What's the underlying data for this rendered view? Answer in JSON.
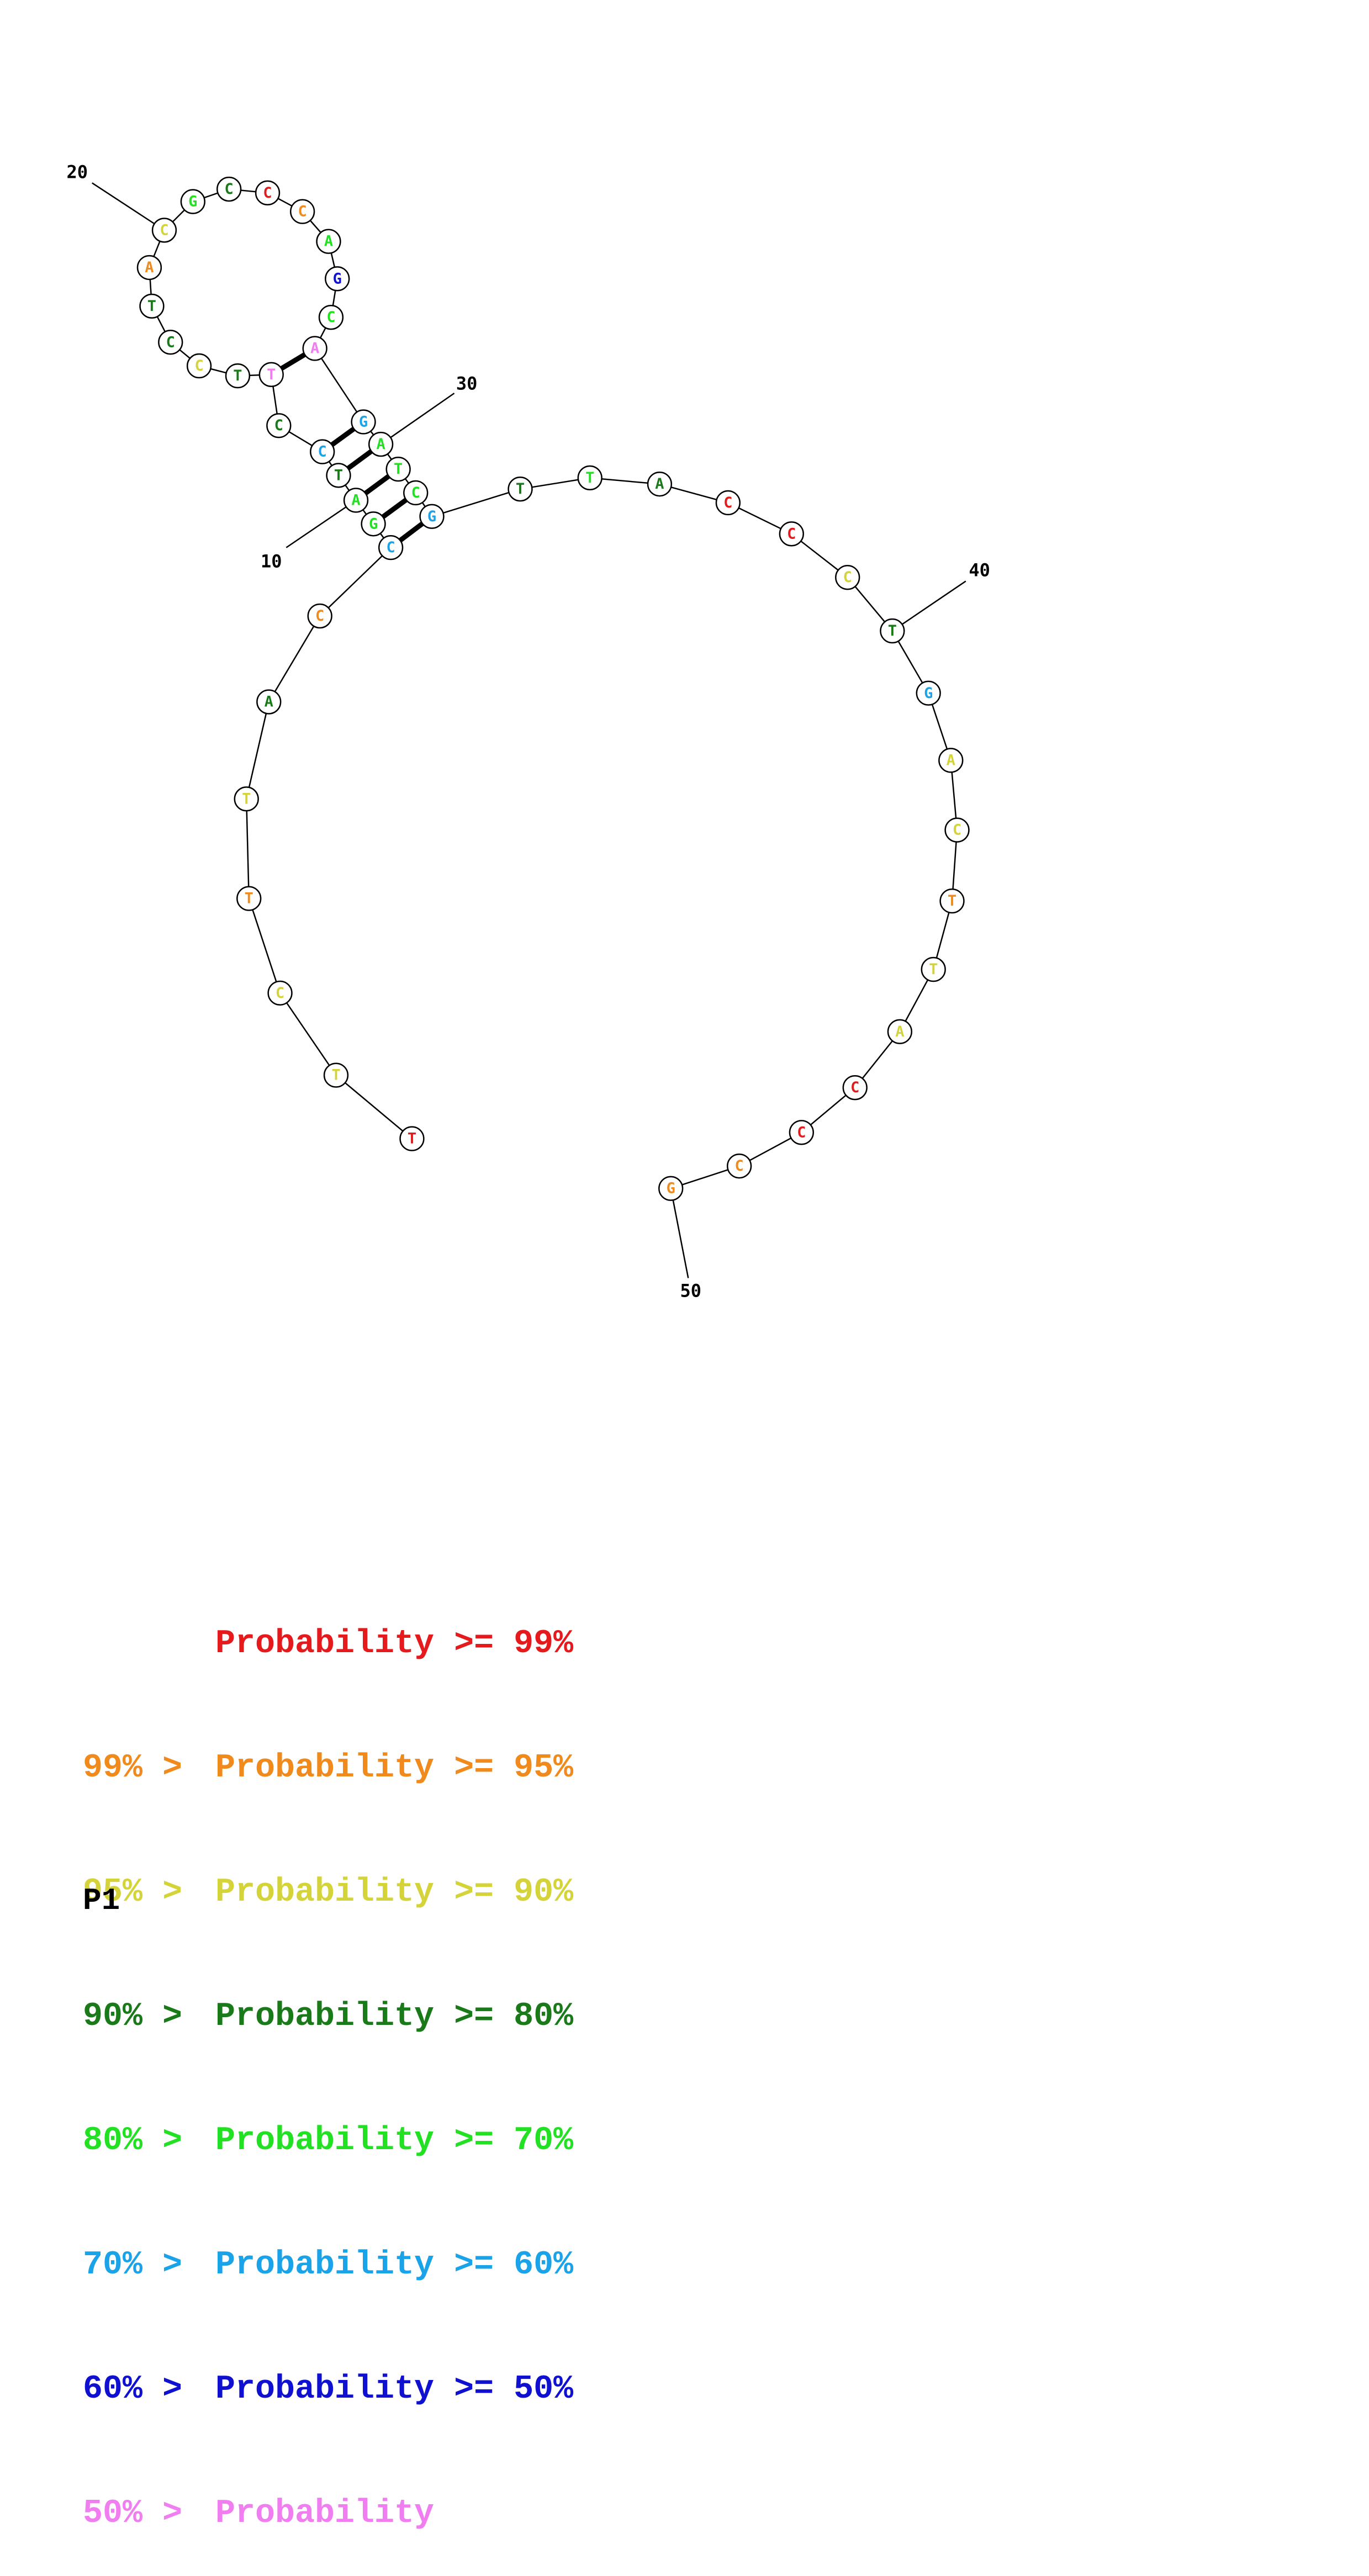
{
  "colors": {
    "p99": "#e41a1c",
    "p95": "#f08a1c",
    "p90": "#d4d43a",
    "p80": "#1a7a1a",
    "p70": "#22e022",
    "p60": "#1aa3e8",
    "p50": "#1010d0",
    "plt50": "#f07ef0"
  },
  "sequence": [
    {
      "base": "T",
      "p": "p99"
    },
    {
      "base": "T",
      "p": "p90"
    },
    {
      "base": "C",
      "p": "p90"
    },
    {
      "base": "T",
      "p": "p95"
    },
    {
      "base": "T",
      "p": "p90"
    },
    {
      "base": "A",
      "p": "p80"
    },
    {
      "base": "C",
      "p": "p95"
    },
    {
      "base": "C",
      "p": "p60"
    },
    {
      "base": "G",
      "p": "p70"
    },
    {
      "base": "A",
      "p": "p70"
    },
    {
      "base": "T",
      "p": "p80"
    },
    {
      "base": "C",
      "p": "p60"
    },
    {
      "base": "C",
      "p": "p80"
    },
    {
      "base": "T",
      "p": "plt50"
    },
    {
      "base": "T",
      "p": "p80"
    },
    {
      "base": "C",
      "p": "p90"
    },
    {
      "base": "C",
      "p": "p80"
    },
    {
      "base": "T",
      "p": "p80"
    },
    {
      "base": "A",
      "p": "p95"
    },
    {
      "base": "C",
      "p": "p90"
    },
    {
      "base": "G",
      "p": "p70"
    },
    {
      "base": "C",
      "p": "p80"
    },
    {
      "base": "C",
      "p": "p99"
    },
    {
      "base": "C",
      "p": "p95"
    },
    {
      "base": "A",
      "p": "p70"
    },
    {
      "base": "G",
      "p": "p50"
    },
    {
      "base": "C",
      "p": "p70"
    },
    {
      "base": "A",
      "p": "plt50"
    },
    {
      "base": "G",
      "p": "p60"
    },
    {
      "base": "A",
      "p": "p70"
    },
    {
      "base": "T",
      "p": "p70"
    },
    {
      "base": "C",
      "p": "p70"
    },
    {
      "base": "G",
      "p": "p60"
    },
    {
      "base": "T",
      "p": "p80"
    },
    {
      "base": "T",
      "p": "p70"
    },
    {
      "base": "A",
      "p": "p80"
    },
    {
      "base": "C",
      "p": "p99"
    },
    {
      "base": "C",
      "p": "p99"
    },
    {
      "base": "C",
      "p": "p90"
    },
    {
      "base": "T",
      "p": "p80"
    },
    {
      "base": "G",
      "p": "p60"
    },
    {
      "base": "A",
      "p": "p90"
    },
    {
      "base": "C",
      "p": "p90"
    },
    {
      "base": "T",
      "p": "p95"
    },
    {
      "base": "T",
      "p": "p90"
    },
    {
      "base": "A",
      "p": "p90"
    },
    {
      "base": "C",
      "p": "p99"
    },
    {
      "base": "C",
      "p": "p99"
    },
    {
      "base": "C",
      "p": "p95"
    },
    {
      "base": "G",
      "p": "p95"
    }
  ],
  "base_pairs": [
    [
      8,
      33
    ],
    [
      9,
      32
    ],
    [
      10,
      31
    ],
    [
      11,
      30
    ],
    [
      12,
      29
    ],
    [
      14,
      28
    ]
  ],
  "position_labels": [
    "10",
    "20",
    "30",
    "40",
    "50"
  ],
  "legend": [
    {
      "prefix": "",
      "label": "Probability",
      "suffix": ">= 99%",
      "color_key": "p99"
    },
    {
      "prefix": "99% >",
      "label": "Probability",
      "suffix": ">= 95%",
      "color_key": "p95"
    },
    {
      "prefix": "95% >",
      "label": "Probability",
      "suffix": ">= 90%",
      "color_key": "p90"
    },
    {
      "prefix": "90% >",
      "label": "Probability",
      "suffix": ">= 80%",
      "color_key": "p80"
    },
    {
      "prefix": "80% >",
      "label": "Probability",
      "suffix": ">= 70%",
      "color_key": "p70"
    },
    {
      "prefix": "70% >",
      "label": "Probability",
      "suffix": ">= 60%",
      "color_key": "p60"
    },
    {
      "prefix": "60% >",
      "label": "Probability",
      "suffix": ">= 50%",
      "color_key": "p50"
    },
    {
      "prefix": "50% >",
      "label": "Probability",
      "suffix": "",
      "color_key": "plt50"
    }
  ],
  "structure_name": "P1"
}
